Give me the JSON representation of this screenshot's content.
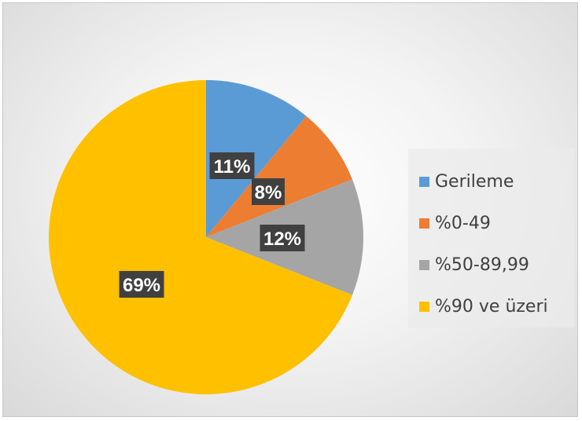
{
  "chart_data": {
    "type": "pie",
    "categories": [
      "Gerileme",
      "%0-49",
      "%50-89,99",
      "%90 ve üzeri"
    ],
    "values": [
      11,
      8,
      12,
      69
    ],
    "data_labels": [
      "11%",
      "8%",
      "12%",
      "69%"
    ],
    "colors": [
      "#5B9BD5",
      "#ED7D31",
      "#A5A5A5",
      "#FFC000"
    ],
    "legend_position": "right",
    "title": ""
  }
}
